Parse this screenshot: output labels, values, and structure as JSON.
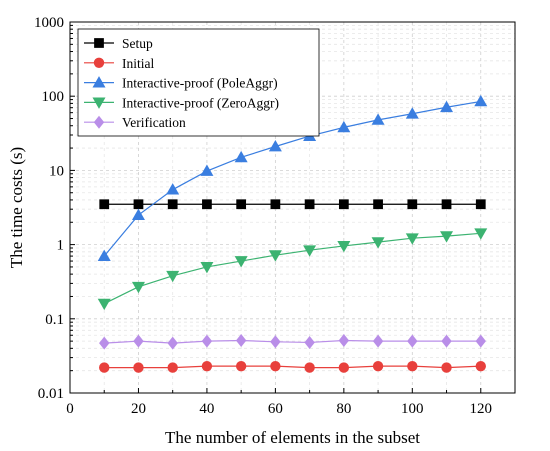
{
  "chart_data": {
    "type": "line",
    "xlabel": "The number of elements in the subset",
    "ylabel": "The time costs (s)",
    "y_scale": "log",
    "xlim": [
      0,
      130
    ],
    "ylim": [
      0.01,
      1000
    ],
    "x_ticks": [
      0,
      20,
      40,
      60,
      80,
      100,
      120
    ],
    "x_tick_labels": [
      "0",
      "20",
      "40",
      "60",
      "80",
      "100",
      "120"
    ],
    "y_ticks": [
      0.01,
      0.1,
      1,
      10,
      100,
      1000
    ],
    "y_tick_labels": [
      "0.01",
      "0.1",
      "1",
      "10",
      "100",
      "1000"
    ],
    "grid": true,
    "legend_position": "top-left",
    "x": [
      10,
      20,
      30,
      40,
      50,
      60,
      70,
      80,
      90,
      100,
      110,
      120
    ],
    "series": [
      {
        "name": "Setup",
        "marker": "square",
        "color": "#000000",
        "values": [
          3.5,
          3.5,
          3.5,
          3.5,
          3.5,
          3.5,
          3.5,
          3.5,
          3.5,
          3.5,
          3.5,
          3.5
        ]
      },
      {
        "name": "Initial",
        "marker": "circle",
        "color": "#e8403c",
        "values": [
          0.022,
          0.022,
          0.022,
          0.023,
          0.023,
          0.023,
          0.022,
          0.022,
          0.023,
          0.023,
          0.022,
          0.023
        ]
      },
      {
        "name": "Interactive-proof (PoleAggr)",
        "marker": "triangle-up",
        "color": "#3a7ee0",
        "values": [
          0.7,
          2.5,
          5.5,
          9.8,
          15,
          21,
          29,
          38,
          48,
          58,
          71,
          85
        ]
      },
      {
        "name": "Interactive-proof (ZeroAggr)",
        "marker": "triangle-down",
        "color": "#3cb371",
        "values": [
          0.16,
          0.27,
          0.38,
          0.5,
          0.6,
          0.72,
          0.84,
          0.96,
          1.08,
          1.22,
          1.3,
          1.42
        ]
      },
      {
        "name": "Verification",
        "marker": "diamond",
        "color": "#b98ee8",
        "values": [
          0.047,
          0.05,
          0.047,
          0.05,
          0.051,
          0.049,
          0.048,
          0.051,
          0.05,
          0.05,
          0.05,
          0.05
        ]
      }
    ]
  }
}
